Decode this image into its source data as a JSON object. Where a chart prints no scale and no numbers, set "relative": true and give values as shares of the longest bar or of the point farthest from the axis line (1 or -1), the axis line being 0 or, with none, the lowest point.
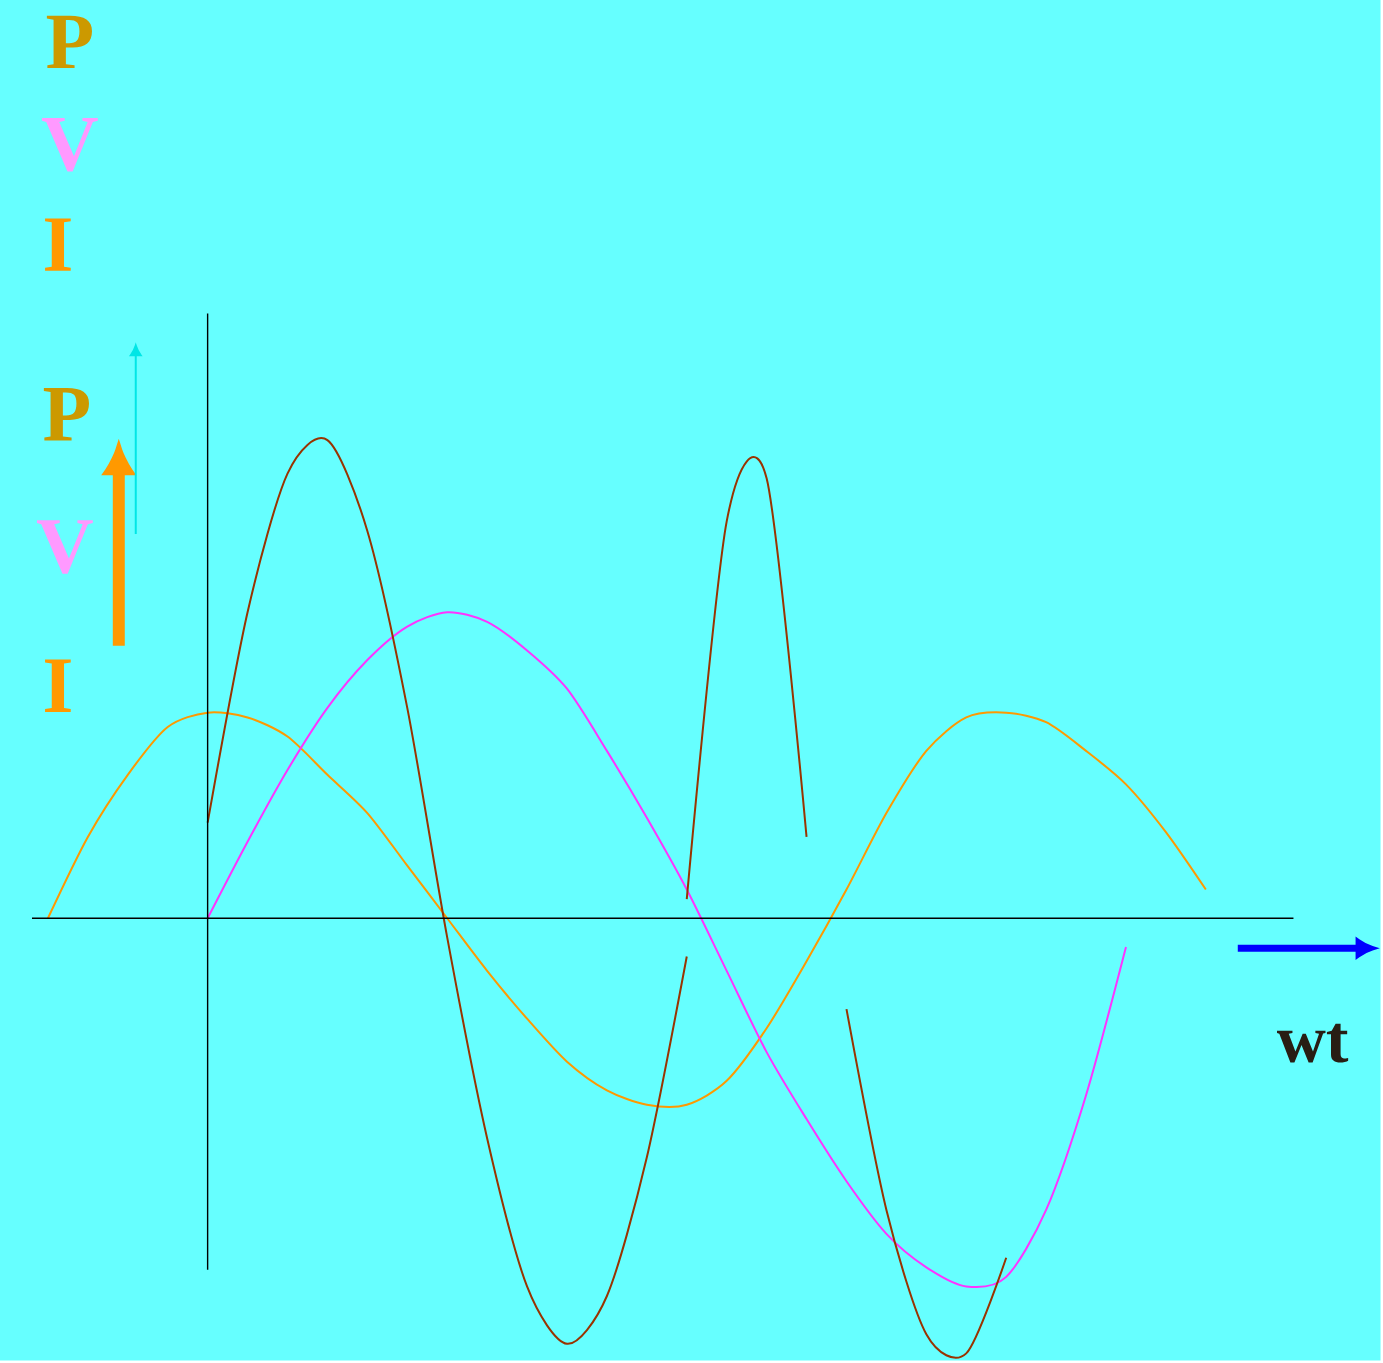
{
  "chart_data": {
    "type": "line",
    "relative": true,
    "xlabel": "wt",
    "annotations": [
      "P",
      "V",
      "I",
      "P",
      "V",
      "I"
    ],
    "categories": [
      null,
      null,
      null,
      null,
      null,
      null,
      null,
      null,
      null,
      null,
      null,
      null,
      null,
      null,
      null,
      null,
      null,
      null,
      null,
      null,
      null,
      null,
      null,
      null,
      null,
      null,
      null,
      null,
      null,
      null,
      null,
      null
    ],
    "series": [
      {
        "color": "#ff9900",
        "values": [
          0,
          0.17,
          0.3,
          0.4,
          0.43,
          0.42,
          0.38,
          0.3,
          0.22,
          0.11,
          0,
          -0.11,
          -0.21,
          -0.3,
          -0.36,
          -0.39,
          -0.39,
          -0.34,
          -0.23,
          -0.09,
          0.06,
          0.22,
          0.35,
          0.42,
          0.43,
          0.41,
          0.35,
          0.28,
          0.18,
          0.06,
          null,
          null
        ]
      },
      {
        "color": "#ff33ff",
        "values": [
          null,
          null,
          null,
          null,
          0,
          0.16,
          0.31,
          0.44,
          0.54,
          0.61,
          0.64,
          0.62,
          0.56,
          0.48,
          0.35,
          0.21,
          0.06,
          -0.11,
          -0.28,
          -0.42,
          -0.55,
          -0.66,
          -0.73,
          -0.77,
          -0.75,
          -0.61,
          -0.37,
          -0.06,
          null,
          null,
          null,
          null
        ]
      },
      {
        "color": "#993300",
        "values": [
          null,
          null,
          null,
          null,
          0.2,
          0.64,
          0.93,
          1.0,
          0.81,
          0.44,
          -0.04,
          -0.46,
          -0.77,
          -0.89,
          -0.79,
          -0.5,
          -0.08,
          null,
          null,
          null,
          null,
          null,
          null,
          null,
          null,
          null,
          null,
          null,
          null,
          null,
          null,
          null
        ]
      },
      {
        "color": "#993300",
        "values": [
          null,
          null,
          null,
          null,
          null,
          null,
          null,
          null,
          null,
          null,
          null,
          null,
          null,
          null,
          null,
          null,
          0.04,
          0.83,
          0.92,
          0.17,
          null,
          null,
          null,
          null,
          null,
          null,
          null,
          null,
          null,
          null,
          null,
          null
        ]
      },
      {
        "color": "#993300",
        "values": [
          null,
          null,
          null,
          null,
          null,
          null,
          null,
          null,
          null,
          null,
          null,
          null,
          null,
          null,
          null,
          null,
          null,
          null,
          null,
          null,
          -0.19,
          -0.61,
          -0.87,
          -0.91,
          -0.71,
          null,
          null,
          null,
          null,
          null,
          null,
          null
        ]
      }
    ]
  }
}
